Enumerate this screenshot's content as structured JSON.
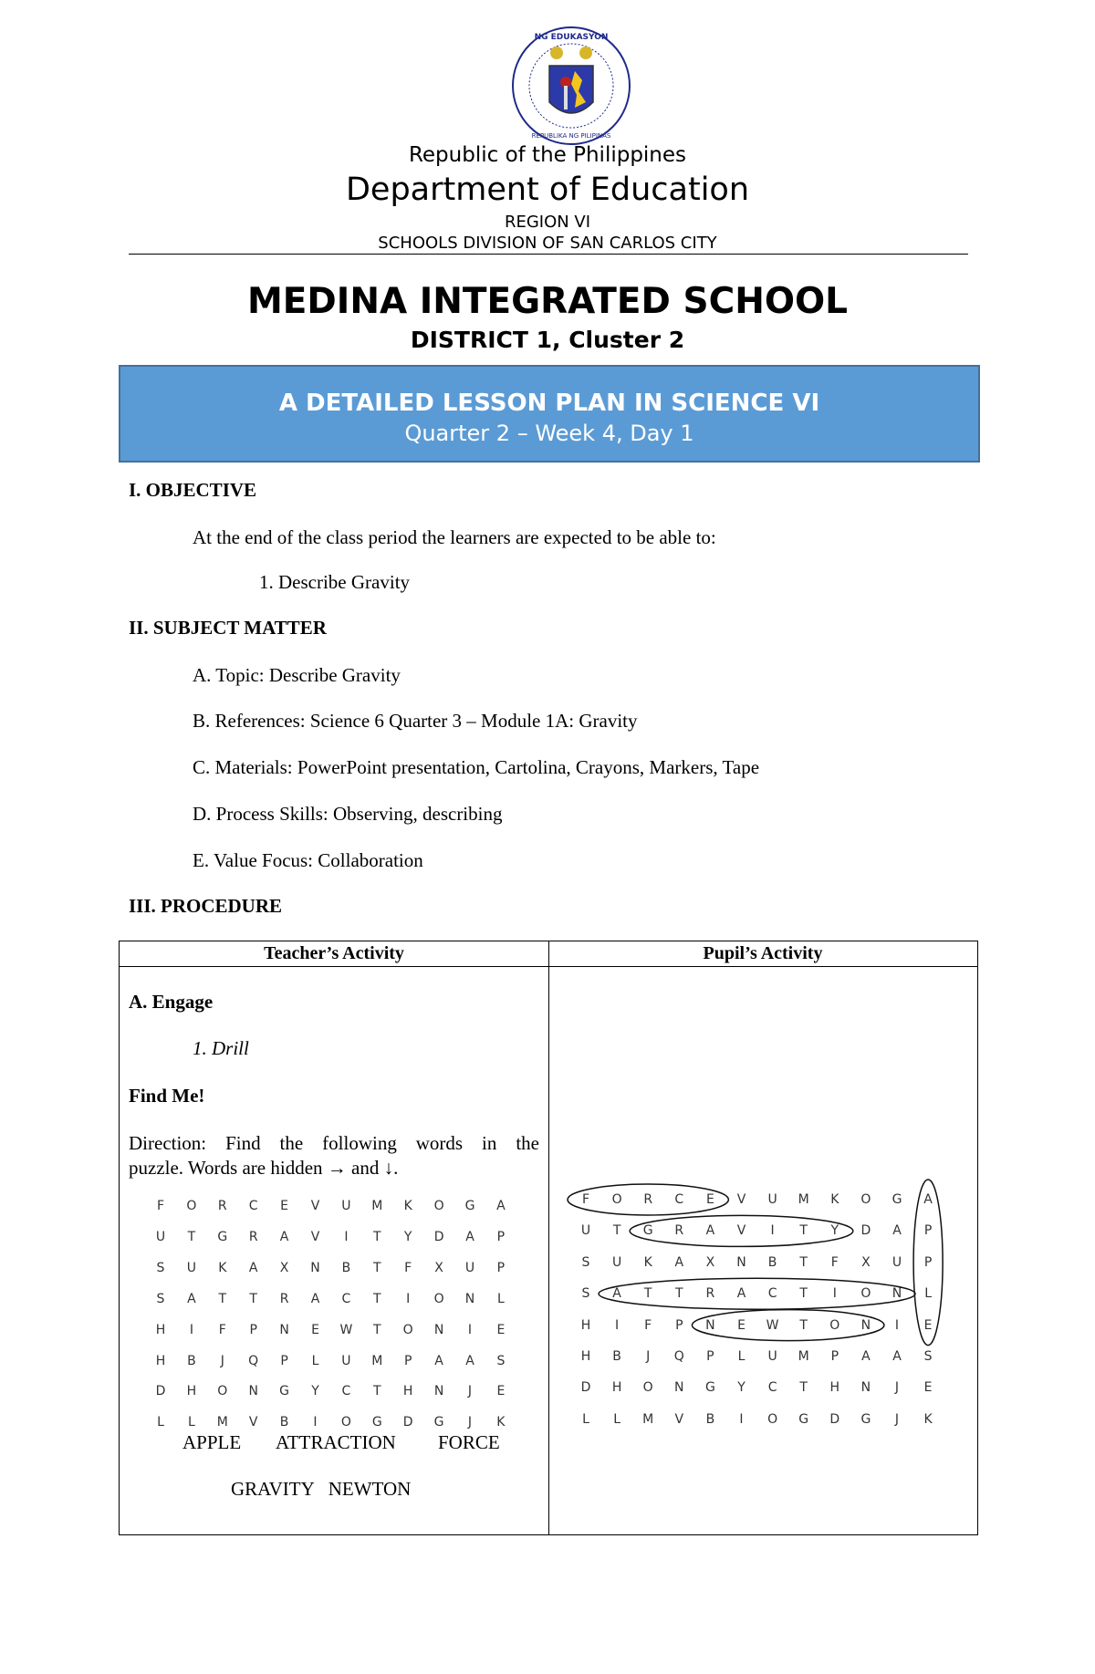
{
  "header": {
    "logo_text_top": "KAGAWARAN NG EDUKASYON",
    "logo_text_bottom": "REPUBLIKA NG PILIPINAS",
    "republic": "Republic of the Philippines",
    "department": "Department of Education",
    "region": "REGION VI",
    "division": "SCHOOLS DIVISION OF SAN CARLOS CITY",
    "school": "MEDINA INTEGRATED SCHOOL",
    "district": "DISTRICT 1, Cluster 2"
  },
  "colors": {
    "banner": "#5b9bd5",
    "banner_border": "#41719c"
  },
  "banner": {
    "title": "A DETAILED LESSON PLAN IN SCIENCE VI",
    "subtitle": "Quarter 2 – Week 4, Day 1"
  },
  "objective": {
    "heading": "I. OBJECTIVE",
    "intro": "At the end of the class period the learners are expected to be able to:",
    "items": [
      "1. Describe Gravity"
    ]
  },
  "subject_matter": {
    "heading": "II. SUBJECT MATTER",
    "items": [
      "A. Topic: Describe Gravity",
      "B. References: Science 6 Quarter 3 – Module 1A: Gravity",
      "C. Materials: PowerPoint presentation, Cartolina, Crayons, Markers, Tape",
      "D. Process Skills: Observing, describing",
      "E. Value Focus: Collaboration"
    ]
  },
  "procedure": {
    "heading": "III. PROCEDURE",
    "columns": [
      "Teacher’s Activity",
      "Pupil’s Activity"
    ],
    "engage": "A. Engage",
    "drill": "1. Drill",
    "find_me": "Find Me!",
    "direction_line1": "Direction: Find the following words in the",
    "direction_line2": "puzzle. Words are hidden → and ↓.",
    "words_line1": [
      "APPLE",
      "ATTRACTION",
      "FORCE"
    ],
    "words_line2": "GRAVITY   NEWTON",
    "puzzle": [
      "FORCEVUMKOGA",
      "UTGRAVITYDAP",
      "SUKAXNBTFXUP",
      "SATTRACTIONL",
      "HIFPNEWTONIE",
      "HBJQPLUMPAAS",
      "DHONGYCTHNJE",
      "LLMVBIOGDGJK"
    ],
    "answers": [
      {
        "word": "FORCE",
        "row": 0,
        "col": 0,
        "dir": "across"
      },
      {
        "word": "GRAVITY",
        "row": 1,
        "col": 2,
        "dir": "across"
      },
      {
        "word": "ATTRACTION",
        "row": 3,
        "col": 1,
        "dir": "across"
      },
      {
        "word": "NEWTON",
        "row": 4,
        "col": 4,
        "dir": "across"
      },
      {
        "word": "APPLE",
        "row": 0,
        "col": 11,
        "dir": "down"
      }
    ]
  }
}
